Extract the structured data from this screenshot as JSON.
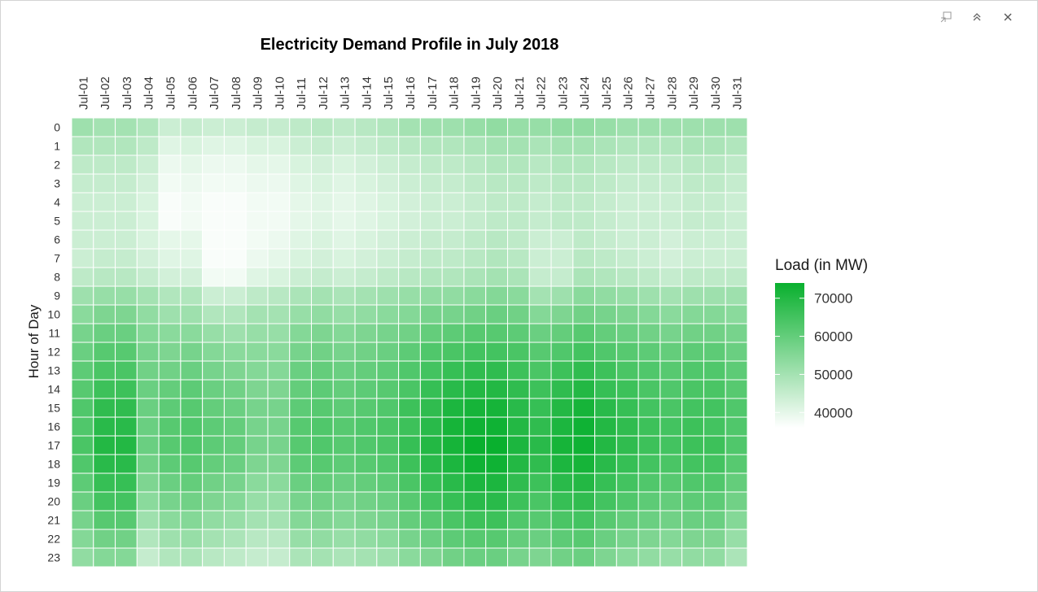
{
  "window": {
    "icons": [
      "pin-icon",
      "collapse-icon",
      "close-icon"
    ]
  },
  "chart_data": {
    "type": "heatmap",
    "title": "Electricity Demand Profile in July 2018",
    "xlabel": "",
    "ylabel": "Hour of Day",
    "x": [
      "Jul-01",
      "Jul-02",
      "Jul-03",
      "Jul-04",
      "Jul-05",
      "Jul-06",
      "Jul-07",
      "Jul-08",
      "Jul-09",
      "Jul-10",
      "Jul-11",
      "Jul-12",
      "Jul-13",
      "Jul-14",
      "Jul-15",
      "Jul-16",
      "Jul-17",
      "Jul-18",
      "Jul-19",
      "Jul-20",
      "Jul-21",
      "Jul-22",
      "Jul-23",
      "Jul-24",
      "Jul-25",
      "Jul-26",
      "Jul-27",
      "Jul-28",
      "Jul-29",
      "Jul-30",
      "Jul-31"
    ],
    "y": [
      "0",
      "1",
      "2",
      "3",
      "4",
      "5",
      "6",
      "7",
      "8",
      "9",
      "10",
      "11",
      "12",
      "13",
      "14",
      "15",
      "16",
      "17",
      "18",
      "19",
      "20",
      "21",
      "22",
      "23"
    ],
    "values": [
      [
        51000,
        50000,
        50000,
        48000,
        44000,
        45000,
        44000,
        44000,
        45000,
        45000,
        46000,
        47000,
        46000,
        47000,
        48000,
        50000,
        51000,
        51000,
        52000,
        53000,
        52000,
        52000,
        53000,
        53000,
        52000,
        51000,
        51000,
        51000,
        51000,
        51000,
        51000
      ],
      [
        48000,
        48000,
        48000,
        46000,
        41000,
        42000,
        41000,
        41000,
        42000,
        42000,
        44000,
        45000,
        44000,
        45000,
        46000,
        47000,
        48000,
        48000,
        49000,
        50000,
        50000,
        49000,
        50000,
        50000,
        49000,
        48000,
        48000,
        48000,
        49000,
        49000,
        48000
      ],
      [
        46000,
        46000,
        46000,
        44000,
        39000,
        40000,
        39000,
        39000,
        40000,
        40000,
        42000,
        43000,
        42000,
        43000,
        44000,
        45000,
        46000,
        46000,
        47000,
        48000,
        48000,
        47000,
        48000,
        48000,
        47000,
        46000,
        46000,
        46000,
        47000,
        47000,
        46000
      ],
      [
        45000,
        45000,
        45000,
        43000,
        38000,
        39000,
        38000,
        38000,
        39000,
        39000,
        41000,
        42000,
        41000,
        42000,
        43000,
        44000,
        45000,
        45000,
        46000,
        47000,
        47000,
        46000,
        47000,
        47000,
        46000,
        45000,
        45000,
        45000,
        46000,
        46000,
        45000
      ],
      [
        44000,
        44000,
        44000,
        42000,
        37000,
        38000,
        37000,
        37000,
        38000,
        38000,
        40000,
        41000,
        40000,
        41000,
        42000,
        43000,
        44000,
        44000,
        45000,
        46000,
        46000,
        45000,
        46000,
        46000,
        45000,
        44000,
        44000,
        44000,
        45000,
        45000,
        44000
      ],
      [
        44000,
        44000,
        44000,
        42000,
        37000,
        38000,
        37000,
        37000,
        38000,
        38000,
        40000,
        41000,
        40000,
        41000,
        42000,
        43000,
        44000,
        44000,
        45000,
        46000,
        46000,
        45000,
        46000,
        46000,
        45000,
        44000,
        44000,
        44000,
        45000,
        45000,
        44000
      ],
      [
        44000,
        44000,
        44000,
        42000,
        40000,
        40000,
        37000,
        37000,
        38000,
        39000,
        41000,
        42000,
        41000,
        42000,
        43000,
        44000,
        45000,
        45000,
        46000,
        47000,
        46000,
        44000,
        44000,
        46000,
        45000,
        44000,
        44000,
        43000,
        44000,
        44000,
        44000
      ],
      [
        44000,
        45000,
        45000,
        43000,
        41000,
        41000,
        37000,
        37000,
        39000,
        40000,
        42000,
        43000,
        42000,
        43000,
        44000,
        45000,
        46000,
        46000,
        47000,
        48000,
        47000,
        44000,
        44000,
        47000,
        46000,
        45000,
        44000,
        43000,
        44000,
        44000,
        44000
      ],
      [
        46000,
        47000,
        47000,
        45000,
        43000,
        43000,
        38000,
        38000,
        41000,
        42000,
        44000,
        45000,
        44000,
        45000,
        46000,
        47000,
        48000,
        48000,
        49000,
        50000,
        49000,
        45000,
        45000,
        49000,
        48000,
        47000,
        46000,
        45000,
        46000,
        46000,
        46000
      ],
      [
        51000,
        52000,
        52000,
        50000,
        48000,
        48000,
        44000,
        44000,
        46000,
        47000,
        49000,
        50000,
        49000,
        50000,
        51000,
        52000,
        53000,
        53000,
        54000,
        55000,
        54000,
        50000,
        51000,
        54000,
        53000,
        52000,
        51000,
        50000,
        51000,
        51000,
        51000
      ],
      [
        54000,
        56000,
        56000,
        53000,
        51000,
        51000,
        48000,
        48000,
        50000,
        50000,
        52000,
        53000,
        52000,
        53000,
        54000,
        55000,
        57000,
        57000,
        58000,
        59000,
        58000,
        55000,
        56000,
        58000,
        57000,
        56000,
        55000,
        54000,
        55000,
        55000,
        54000
      ],
      [
        57000,
        59000,
        59000,
        55000,
        54000,
        54000,
        52000,
        51000,
        52000,
        52000,
        55000,
        56000,
        55000,
        56000,
        57000,
        58000,
        60000,
        61000,
        62000,
        62000,
        61000,
        59000,
        60000,
        62000,
        60000,
        59000,
        58000,
        57000,
        58000,
        58000,
        57000
      ],
      [
        59000,
        62000,
        62000,
        57000,
        56000,
        57000,
        55000,
        54000,
        54000,
        54000,
        57000,
        58000,
        57000,
        58000,
        59000,
        61000,
        63000,
        64000,
        65000,
        65000,
        64000,
        62000,
        63000,
        65000,
        63000,
        62000,
        61000,
        60000,
        61000,
        61000,
        59000
      ],
      [
        61000,
        64000,
        64000,
        58000,
        58000,
        59000,
        57000,
        56000,
        55000,
        55000,
        59000,
        60000,
        59000,
        60000,
        61000,
        63000,
        65000,
        67000,
        68000,
        68000,
        66000,
        64000,
        66000,
        68000,
        66000,
        64000,
        63000,
        62000,
        63000,
        63000,
        61000
      ],
      [
        62000,
        66000,
        66000,
        59000,
        60000,
        61000,
        59000,
        58000,
        56000,
        56000,
        60000,
        61000,
        60000,
        61000,
        62000,
        64000,
        67000,
        69000,
        70000,
        70000,
        68000,
        66000,
        68000,
        70000,
        67000,
        66000,
        64000,
        63000,
        64000,
        64000,
        62000
      ],
      [
        63000,
        68000,
        68000,
        59000,
        61000,
        62000,
        60000,
        59000,
        57000,
        57000,
        61000,
        62000,
        61000,
        62000,
        63000,
        66000,
        68000,
        71000,
        72000,
        72000,
        69000,
        67000,
        70000,
        72000,
        69000,
        67000,
        65000,
        64000,
        65000,
        65000,
        63000
      ],
      [
        63000,
        69000,
        69000,
        59000,
        62000,
        63000,
        61000,
        60000,
        57000,
        57000,
        62000,
        63000,
        62000,
        63000,
        64000,
        66000,
        69000,
        72000,
        73000,
        73000,
        70000,
        68000,
        71000,
        73000,
        70000,
        68000,
        66000,
        65000,
        66000,
        65000,
        63000
      ],
      [
        64000,
        70000,
        70000,
        59000,
        62000,
        63000,
        61000,
        60000,
        57000,
        57000,
        62000,
        63000,
        62000,
        63000,
        64000,
        67000,
        70000,
        72000,
        74000,
        74000,
        71000,
        69000,
        72000,
        73000,
        70000,
        68000,
        66000,
        65000,
        66000,
        66000,
        63000
      ],
      [
        63000,
        69000,
        69000,
        58000,
        61000,
        62000,
        60000,
        59000,
        56000,
        56000,
        61000,
        62000,
        61000,
        62000,
        63000,
        66000,
        69000,
        71000,
        73000,
        73000,
        70000,
        68000,
        71000,
        72000,
        69000,
        67000,
        65000,
        64000,
        65000,
        65000,
        62000
      ],
      [
        61000,
        67000,
        67000,
        56000,
        59000,
        60000,
        58000,
        57000,
        54000,
        54000,
        59000,
        60000,
        59000,
        60000,
        61000,
        64000,
        67000,
        69000,
        71000,
        71000,
        68000,
        66000,
        69000,
        70000,
        67000,
        65000,
        63000,
        62000,
        63000,
        63000,
        60000
      ],
      [
        59000,
        65000,
        65000,
        54000,
        57000,
        58000,
        56000,
        55000,
        52000,
        52000,
        57000,
        58000,
        57000,
        58000,
        59000,
        62000,
        65000,
        67000,
        69000,
        69000,
        66000,
        64000,
        67000,
        68000,
        65000,
        63000,
        61000,
        60000,
        61000,
        61000,
        58000
      ],
      [
        57000,
        62000,
        62000,
        51000,
        54000,
        55000,
        53000,
        52000,
        50000,
        50000,
        55000,
        56000,
        55000,
        56000,
        57000,
        60000,
        62000,
        64000,
        66000,
        66000,
        63000,
        62000,
        64000,
        65000,
        62000,
        60000,
        59000,
        58000,
        59000,
        59000,
        55000
      ],
      [
        55000,
        58000,
        58000,
        48000,
        51000,
        52000,
        50000,
        49000,
        47000,
        47000,
        52000,
        53000,
        52000,
        53000,
        54000,
        57000,
        59000,
        61000,
        62000,
        62000,
        60000,
        59000,
        61000,
        62000,
        59000,
        57000,
        56000,
        55000,
        56000,
        56000,
        52000
      ],
      [
        53000,
        55000,
        55000,
        45000,
        48000,
        49000,
        47000,
        46000,
        45000,
        45000,
        49000,
        50000,
        49000,
        50000,
        51000,
        54000,
        56000,
        58000,
        59000,
        59000,
        57000,
        56000,
        58000,
        59000,
        56000,
        54000,
        53000,
        52000,
        53000,
        53000,
        49000
      ]
    ],
    "legend": {
      "title": "Load (in MW)",
      "ticks": [
        70000,
        60000,
        50000,
        40000
      ],
      "range": [
        36000,
        74000
      ],
      "color_low": "#ffffff",
      "color_high": "#09b02e"
    }
  }
}
